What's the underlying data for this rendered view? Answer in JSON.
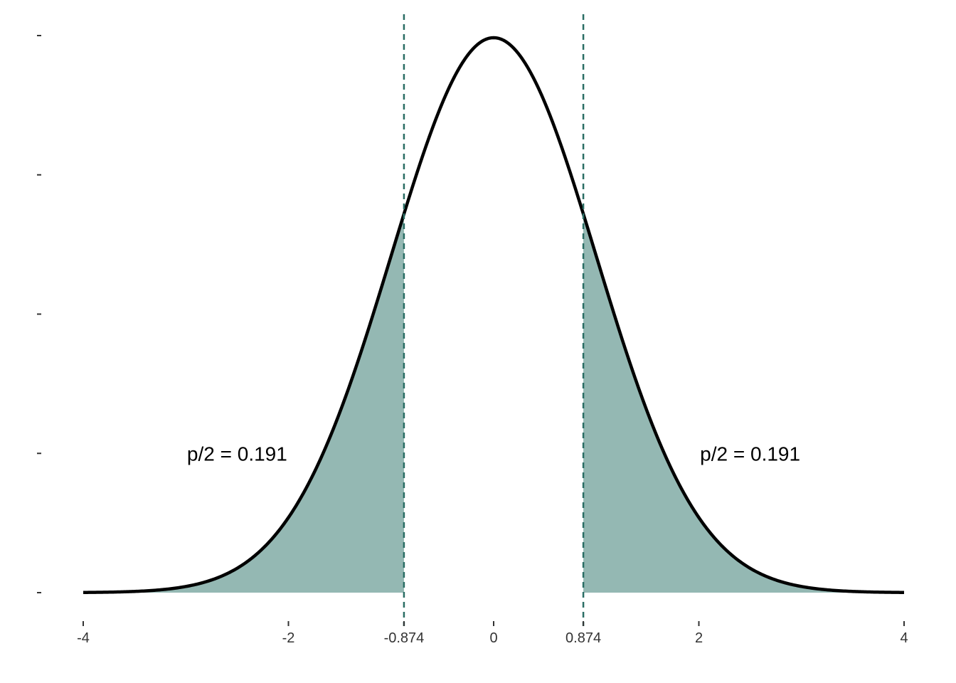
{
  "chart_data": {
    "type": "area",
    "title": "",
    "xlabel": "",
    "ylabel": "",
    "distribution": "standard-normal",
    "xlim": [
      -4,
      4
    ],
    "ylim": [
      0,
      0.4
    ],
    "x_ticks": [
      {
        "value": -4,
        "label": "-4"
      },
      {
        "value": -2,
        "label": "-2"
      },
      {
        "value": -0.874,
        "label": "-0.874"
      },
      {
        "value": 0,
        "label": "0"
      },
      {
        "value": 0.874,
        "label": "0.874"
      },
      {
        "value": 2,
        "label": "2"
      },
      {
        "value": 4,
        "label": "4"
      }
    ],
    "y_ticks": [
      0,
      0.1,
      0.2,
      0.3,
      0.4
    ],
    "y_tick_labels_visible": false,
    "critical_values": [
      -0.874,
      0.874
    ],
    "shaded_regions": [
      {
        "from": -4,
        "to": -0.874
      },
      {
        "from": 0.874,
        "to": 4
      }
    ],
    "annotations": [
      {
        "text": "p/2 = 0.191",
        "x": -2.5,
        "y": 0.1
      },
      {
        "text": "p/2 = 0.191",
        "x": 2.5,
        "y": 0.1
      }
    ],
    "grid": false,
    "legend": "none",
    "colors": {
      "curve": "#000000",
      "fill": "#94b8b3",
      "dashed": "#2a6d64",
      "tick_text": "#333333"
    }
  }
}
